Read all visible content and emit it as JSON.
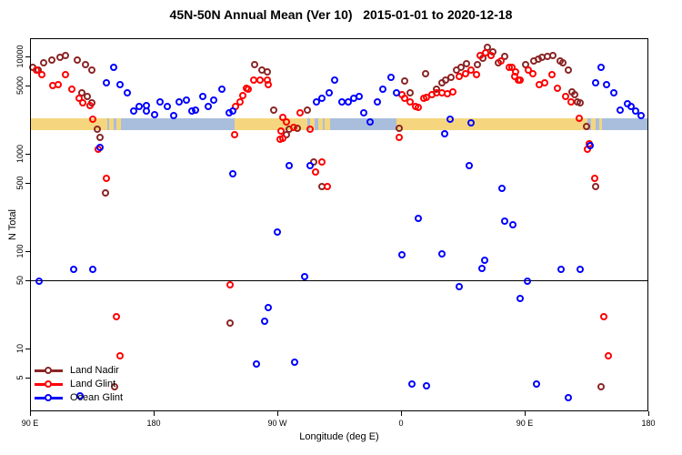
{
  "title": "45N-50N Annual Mean (Ver 10)   2015-01-01 to 2020-12-18",
  "chart_data": {
    "type": "scatter",
    "title": "45N-50N Annual Mean (Ver 10)   2015-01-01 to 2020-12-18",
    "xlabel": "Longitude (deg E)",
    "ylabel": "N Total",
    "y_scale": "log",
    "y_ticks": [
      {
        "v": 10000,
        "label": "10000"
      },
      {
        "v": 5000,
        "label": "5000"
      },
      {
        "v": 1000,
        "label": "1000"
      },
      {
        "v": 500,
        "label": "500"
      },
      {
        "v": 100,
        "label": "100"
      },
      {
        "v": 50,
        "label": "50"
      },
      {
        "v": 10,
        "label": "10"
      },
      {
        "v": 5,
        "label": "5"
      }
    ],
    "x_axis_note": "axis spans 450 degrees of longitude, wrapping eastward from 90E",
    "x_ticks": [
      {
        "deg": 0,
        "label": "90 E"
      },
      {
        "deg": 90,
        "label": "180"
      },
      {
        "deg": 180,
        "label": "90 W"
      },
      {
        "deg": 270,
        "label": "0"
      },
      {
        "deg": 360,
        "label": "90 E"
      },
      {
        "deg": 450,
        "label": "180"
      }
    ],
    "reference_line_value": 50,
    "surface_band": {
      "description": "land/ocean strip along 45N-50N",
      "top_value": 2300,
      "bottom_value": 1760,
      "ocean_color": "#A8BEDC",
      "land_color": "#F5D67E",
      "ocean_base_deg": [
        0,
        450
      ],
      "land_segments_deg": [
        [
          0,
          56
        ],
        [
          57.5,
          61
        ],
        [
          63,
          66
        ],
        [
          149,
          202
        ],
        [
          204,
          207
        ],
        [
          209.5,
          213
        ],
        [
          214.5,
          218.5
        ],
        [
          267,
          405.5
        ],
        [
          408,
          411.5
        ],
        [
          414,
          416.5
        ]
      ]
    },
    "legend": [
      {
        "name": "Land Nadir",
        "color": "#8B2525"
      },
      {
        "name": "Land Glint",
        "color": "#FF0000"
      },
      {
        "name": "Ocean Glint",
        "color": "#0000FF"
      }
    ],
    "series": [
      {
        "name": "Land Nadir",
        "color": "#8B2525",
        "points": [
          [
            2,
            7700
          ],
          [
            6,
            7200
          ],
          [
            10,
            8600
          ],
          [
            16,
            9000
          ],
          [
            22,
            9600
          ],
          [
            26,
            10200
          ],
          [
            35,
            9000
          ],
          [
            41,
            8100
          ],
          [
            45,
            7100
          ],
          [
            38,
            4200
          ],
          [
            42,
            3800
          ],
          [
            45,
            3300
          ],
          [
            49,
            1750
          ],
          [
            51,
            1450
          ],
          [
            55,
            390
          ],
          [
            62,
            4.0
          ],
          [
            146,
            18
          ],
          [
            164,
            8200
          ],
          [
            169,
            7100
          ],
          [
            173,
            6900
          ],
          [
            178,
            2750
          ],
          [
            187,
            1550
          ],
          [
            189,
            1750
          ],
          [
            195,
            1800
          ],
          [
            202,
            2750
          ],
          [
            207,
            810
          ],
          [
            213,
            460
          ],
          [
            269,
            1800
          ],
          [
            273,
            5500
          ],
          [
            277,
            4200
          ],
          [
            288,
            6600
          ],
          [
            296,
            4600
          ],
          [
            300,
            5250
          ],
          [
            303,
            5700
          ],
          [
            307,
            6000
          ],
          [
            311,
            7200
          ],
          [
            314,
            7700
          ],
          [
            318,
            8400
          ],
          [
            326,
            8100
          ],
          [
            330,
            9400
          ],
          [
            333,
            12400
          ],
          [
            337,
            11100
          ],
          [
            341,
            8600
          ],
          [
            346,
            9800
          ],
          [
            361,
            8100
          ],
          [
            367,
            8800
          ],
          [
            370,
            9200
          ],
          [
            373,
            9600
          ],
          [
            377,
            10000
          ],
          [
            381,
            10200
          ],
          [
            386,
            8800
          ],
          [
            388,
            8600
          ],
          [
            392,
            7100
          ],
          [
            395,
            4300
          ],
          [
            397,
            4000
          ],
          [
            399,
            3400
          ],
          [
            401,
            3300
          ],
          [
            405,
            1900
          ],
          [
            412,
            460
          ],
          [
            416,
            4.0
          ]
        ]
      },
      {
        "name": "Land Glint",
        "color": "#FF0000",
        "points": [
          [
            5,
            7100
          ],
          [
            9,
            6400
          ],
          [
            17,
            5000
          ],
          [
            21,
            5100
          ],
          [
            26,
            6400
          ],
          [
            31,
            4600
          ],
          [
            36,
            3700
          ],
          [
            39,
            3300
          ],
          [
            44,
            3100
          ],
          [
            46,
            2250
          ],
          [
            50,
            1100
          ],
          [
            56,
            550
          ],
          [
            63,
            21
          ],
          [
            66,
            8.4
          ],
          [
            146,
            45
          ],
          [
            149,
            1550
          ],
          [
            150,
            3000
          ],
          [
            153,
            3400
          ],
          [
            155,
            3900
          ],
          [
            158,
            4700
          ],
          [
            159,
            4600
          ],
          [
            163,
            5700
          ],
          [
            168,
            5700
          ],
          [
            173,
            5700
          ],
          [
            174,
            5100
          ],
          [
            182,
            1400
          ],
          [
            183,
            1700
          ],
          [
            184,
            2350
          ],
          [
            184,
            1440
          ],
          [
            187,
            2100
          ],
          [
            192,
            1850
          ],
          [
            197,
            2600
          ],
          [
            204,
            1750
          ],
          [
            208,
            640
          ],
          [
            213,
            820
          ],
          [
            217,
            460
          ],
          [
            269,
            1450
          ],
          [
            271,
            4000
          ],
          [
            273,
            3650
          ],
          [
            277,
            3350
          ],
          [
            281,
            3000
          ],
          [
            283,
            2950
          ],
          [
            287,
            3650
          ],
          [
            289,
            3720
          ],
          [
            293,
            4050
          ],
          [
            296,
            4200
          ],
          [
            300,
            4200
          ],
          [
            304,
            4100
          ],
          [
            308,
            4300
          ],
          [
            313,
            6100
          ],
          [
            317,
            6600
          ],
          [
            321,
            7100
          ],
          [
            325,
            6500
          ],
          [
            328,
            10200
          ],
          [
            332,
            10700
          ],
          [
            336,
            10200
          ],
          [
            343,
            8800
          ],
          [
            349,
            7600
          ],
          [
            353,
            6200
          ],
          [
            356,
            5700
          ],
          [
            351,
            7600
          ],
          [
            354,
            6800
          ],
          [
            357,
            5600
          ],
          [
            363,
            7100
          ],
          [
            366,
            6600
          ],
          [
            371,
            5100
          ],
          [
            375,
            5250
          ],
          [
            380,
            6500
          ],
          [
            384,
            4700
          ],
          [
            390,
            3800
          ],
          [
            394,
            3400
          ],
          [
            400,
            2300
          ],
          [
            406,
            1100
          ],
          [
            407,
            1250
          ],
          [
            411,
            550
          ],
          [
            418,
            21
          ],
          [
            421,
            8.4
          ]
        ]
      },
      {
        "name": "Ocean Glint",
        "color": "#0000FF",
        "points": [
          [
            7,
            49
          ],
          [
            32,
            64
          ],
          [
            37,
            3.2
          ],
          [
            46,
            65
          ],
          [
            51,
            1150
          ],
          [
            56,
            5250
          ],
          [
            61,
            7700
          ],
          [
            66,
            5100
          ],
          [
            71,
            4150
          ],
          [
            76,
            2700
          ],
          [
            80,
            3050
          ],
          [
            85,
            3100
          ],
          [
            85,
            2700
          ],
          [
            91,
            2500
          ],
          [
            95,
            3400
          ],
          [
            100,
            3050
          ],
          [
            105,
            2450
          ],
          [
            109,
            3400
          ],
          [
            114,
            3550
          ],
          [
            118,
            2700
          ],
          [
            121,
            2800
          ],
          [
            126,
            3800
          ],
          [
            130,
            3050
          ],
          [
            134,
            3500
          ],
          [
            140,
            4600
          ],
          [
            145,
            2600
          ],
          [
            148,
            2700
          ],
          [
            148,
            620
          ],
          [
            165,
            6.8
          ],
          [
            171,
            19
          ],
          [
            174,
            26
          ],
          [
            180,
            155
          ],
          [
            189,
            740
          ],
          [
            193,
            7.2
          ],
          [
            200,
            54
          ],
          [
            204,
            740
          ],
          [
            209,
            3400
          ],
          [
            213,
            3700
          ],
          [
            218,
            4200
          ],
          [
            222,
            5700
          ],
          [
            227,
            3350
          ],
          [
            232,
            3350
          ],
          [
            236,
            3700
          ],
          [
            240,
            3800
          ],
          [
            243,
            2600
          ],
          [
            248,
            2100
          ],
          [
            253,
            3400
          ],
          [
            257,
            4600
          ],
          [
            263,
            6000
          ],
          [
            267,
            4150
          ],
          [
            271,
            90
          ],
          [
            278,
            4.3
          ],
          [
            283,
            215
          ],
          [
            289,
            4.1
          ],
          [
            300,
            92
          ],
          [
            302,
            1600
          ],
          [
            306,
            2250
          ],
          [
            313,
            43
          ],
          [
            320,
            740
          ],
          [
            321,
            2050
          ],
          [
            329,
            66
          ],
          [
            331,
            79
          ],
          [
            344,
            440
          ],
          [
            346,
            200
          ],
          [
            352,
            185
          ],
          [
            357,
            32
          ],
          [
            362,
            49
          ],
          [
            369,
            4.3
          ],
          [
            387,
            64
          ],
          [
            392,
            3.1
          ],
          [
            401,
            65
          ],
          [
            408,
            1200
          ],
          [
            412,
            5250
          ],
          [
            416,
            7700
          ],
          [
            420,
            5100
          ],
          [
            425,
            4200
          ],
          [
            430,
            2800
          ],
          [
            435,
            3200
          ],
          [
            438,
            3000
          ],
          [
            441,
            2700
          ],
          [
            445,
            2450
          ]
        ]
      }
    ]
  }
}
